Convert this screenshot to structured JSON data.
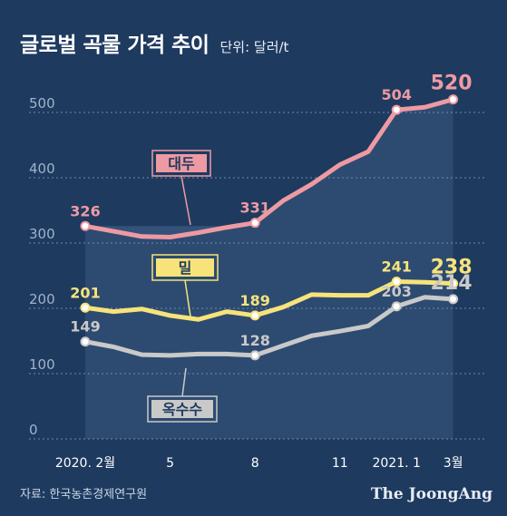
{
  "header": {
    "title": "글로벌 곡물 가격 추이",
    "unit": "단위: 달러/t"
  },
  "footer": {
    "source": "자료: 한국농촌경제연구원",
    "brand": "The JoongAng"
  },
  "colors": {
    "background": "#1e3a5f",
    "soybean": "#ee9aa3",
    "wheat": "#f7e37a",
    "corn": "#c9c9c9",
    "highlight_panel": "#3a5a80"
  },
  "chart_data": {
    "type": "line",
    "title": "글로벌 곡물 가격 추이",
    "ylabel": "단위: 달러/t",
    "ylim": [
      0,
      550
    ],
    "y_ticks": [
      0,
      100,
      200,
      300,
      400,
      500
    ],
    "grid": true,
    "x_tick_labels": [
      "2020. 2월",
      "5",
      "8",
      "11",
      "2021. 1",
      "3월"
    ],
    "x_tick_positions": [
      0,
      3,
      6,
      9,
      11,
      13
    ],
    "x": [
      0,
      1,
      2,
      3,
      4,
      5,
      6,
      7,
      8,
      9,
      10,
      11,
      12,
      13
    ],
    "series": [
      {
        "name": "대두",
        "key": "soybean",
        "values": [
          326,
          318,
          310,
          309,
          316,
          324,
          331,
          365,
          390,
          420,
          440,
          504,
          508,
          520
        ],
        "labels": [
          {
            "i": 0,
            "text": "326"
          },
          {
            "i": 6,
            "text": "331"
          },
          {
            "i": 11,
            "text": "504"
          },
          {
            "i": 13,
            "text": "520"
          }
        ]
      },
      {
        "name": "밀",
        "key": "wheat",
        "values": [
          201,
          195,
          199,
          189,
          183,
          195,
          189,
          202,
          221,
          220,
          220,
          241,
          240,
          238
        ],
        "labels": [
          {
            "i": 0,
            "text": "201"
          },
          {
            "i": 6,
            "text": "189"
          },
          {
            "i": 11,
            "text": "241"
          },
          {
            "i": 13,
            "text": "238"
          }
        ]
      },
      {
        "name": "옥수수",
        "key": "corn",
        "values": [
          149,
          141,
          129,
          128,
          130,
          130,
          128,
          143,
          158,
          165,
          173,
          203,
          217,
          214
        ],
        "labels": [
          {
            "i": 0,
            "text": "149"
          },
          {
            "i": 6,
            "text": "128"
          },
          {
            "i": 11,
            "text": "203"
          },
          {
            "i": 13,
            "text": "214"
          }
        ]
      }
    ]
  }
}
